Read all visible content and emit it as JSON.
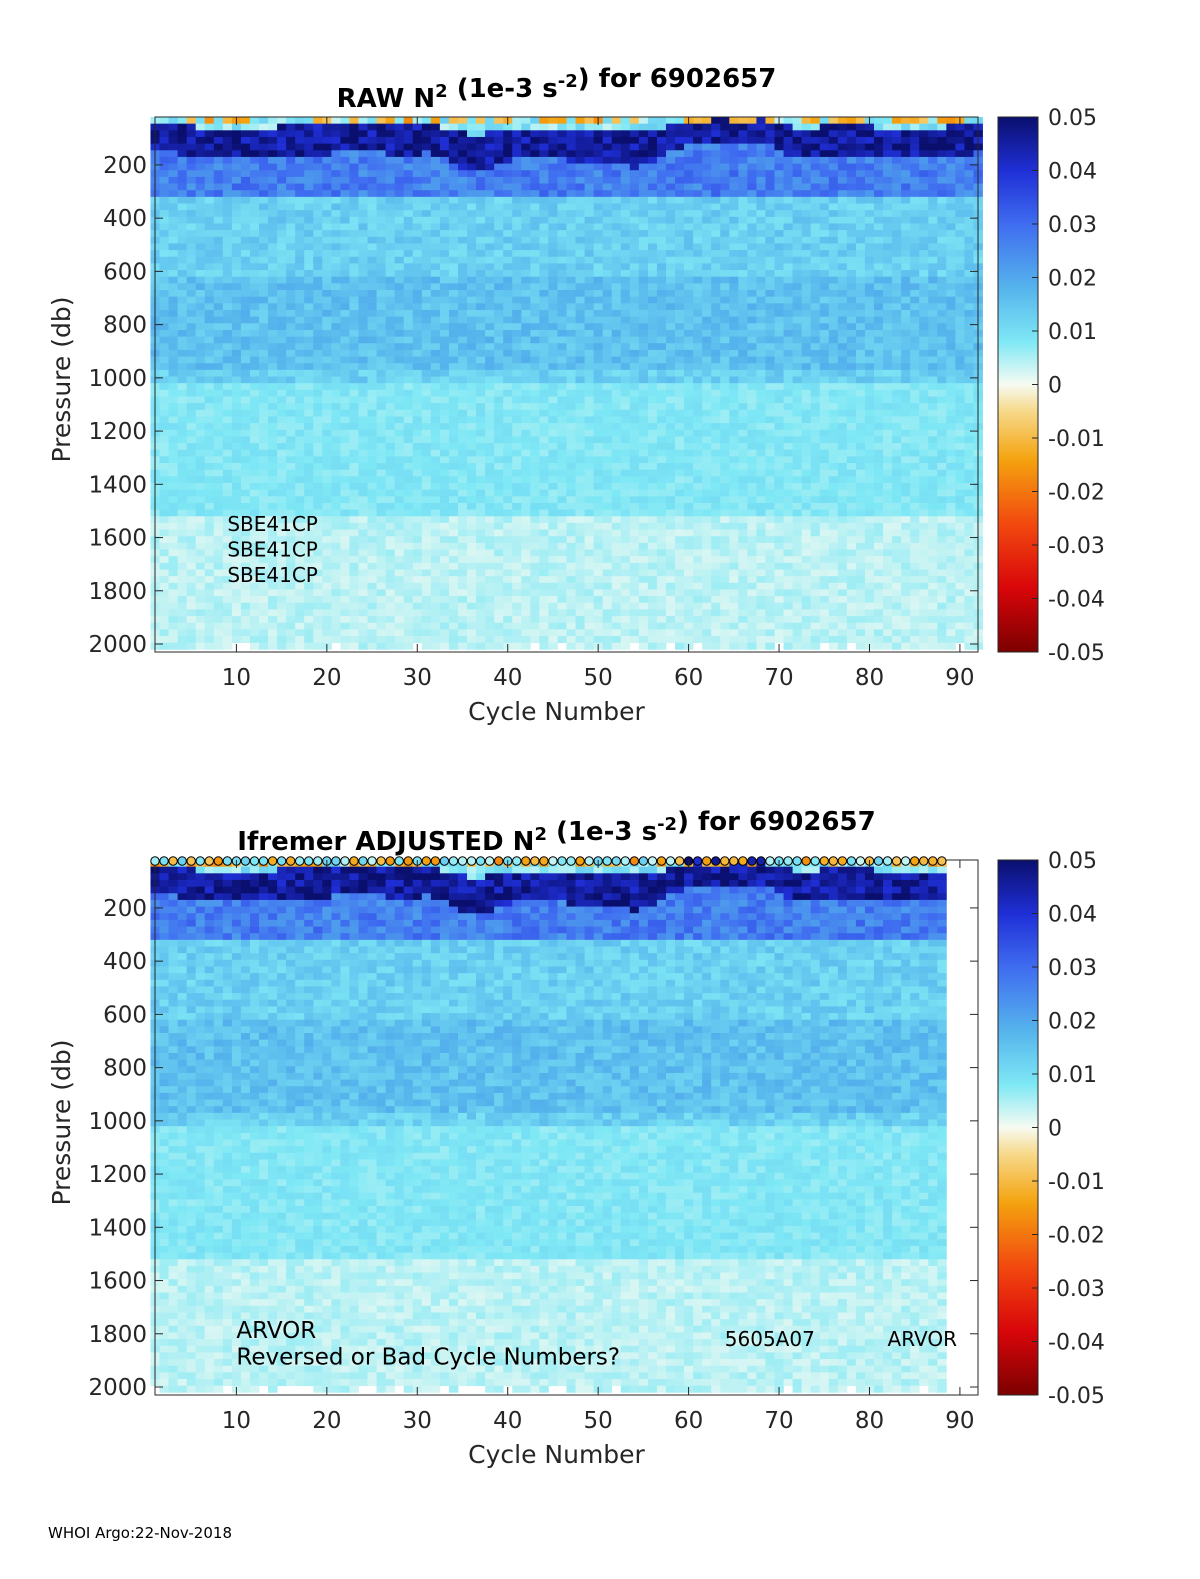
{
  "footer": "WHOI Argo:22-Nov-2018",
  "chart_data": [
    {
      "type": "heatmap",
      "title_main": "RAW N",
      "title_sup": "2",
      "title_mid": " (1e-3 s",
      "title_sup2": "-2",
      "title_end": ") for 6902657",
      "xlabel": "Cycle Number",
      "ylabel": "Pressure (db)",
      "xlim": [
        1,
        92
      ],
      "ylim": [
        2030,
        20
      ],
      "xticks": [
        10,
        20,
        30,
        40,
        50,
        60,
        70,
        80,
        90
      ],
      "yticks": [
        200,
        400,
        600,
        800,
        1000,
        1200,
        1400,
        1600,
        1800,
        2000
      ],
      "data_xmax": 92,
      "colorbar": {
        "min": -0.05,
        "max": 0.05,
        "ticks": [
          "0.05",
          "0.04",
          "0.03",
          "0.02",
          "0.01",
          "0",
          "-0.01",
          "-0.02",
          "-0.03",
          "-0.04",
          "-0.05"
        ]
      },
      "annotations": [
        {
          "text": "SBE41CP",
          "x": 9,
          "y": 1550
        },
        {
          "text": "SBE41CP",
          "x": 9,
          "y": 1645
        },
        {
          "text": "SBE41CP",
          "x": 9,
          "y": 1740
        }
      ],
      "surface_markers": false
    },
    {
      "type": "heatmap",
      "title_main": "Ifremer  ADJUSTED N",
      "title_sup": "2",
      "title_mid": " (1e-3 s",
      "title_sup2": "-2",
      "title_end": ") for 6902657",
      "xlabel": "Cycle Number",
      "ylabel": "Pressure (db)",
      "xlim": [
        1,
        92
      ],
      "ylim": [
        2030,
        20
      ],
      "xticks": [
        10,
        20,
        30,
        40,
        50,
        60,
        70,
        80,
        90
      ],
      "yticks": [
        200,
        400,
        600,
        800,
        1000,
        1200,
        1400,
        1600,
        1800,
        2000
      ],
      "data_xmax": 88,
      "colorbar": {
        "min": -0.05,
        "max": 0.05,
        "ticks": [
          "0.05",
          "0.04",
          "0.03",
          "0.02",
          "0.01",
          "0",
          "-0.01",
          "-0.02",
          "-0.03",
          "-0.04",
          "-0.05"
        ]
      },
      "annotations": [
        {
          "text": "ARVOR",
          "x": 10,
          "y": 1790,
          "large": true
        },
        {
          "text": "Reversed or Bad Cycle Numbers?",
          "x": 10,
          "y": 1890,
          "large": true
        },
        {
          "text": "5605A07",
          "x": 64,
          "y": 1820
        },
        {
          "text": "ARVOR",
          "x": 82,
          "y": 1820
        }
      ],
      "surface_markers": true
    }
  ]
}
